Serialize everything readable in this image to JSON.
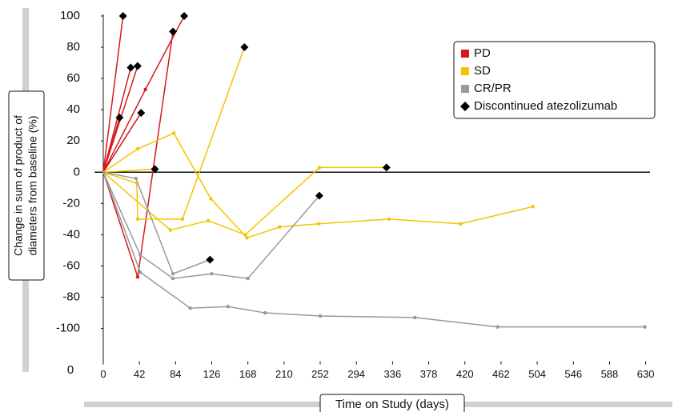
{
  "chart_data": {
    "type": "spider",
    "xlabel": "Time on Study (days)",
    "ylabel": [
      "Change in sum of product of",
      "diameters from baseline (%)"
    ],
    "corner_label": "0",
    "xlim": [
      -10,
      635
    ],
    "xticks": [
      0,
      42,
      84,
      126,
      168,
      210,
      252,
      294,
      336,
      378,
      420,
      462,
      504,
      546,
      588,
      630
    ],
    "ylim": [
      -121,
      100
    ],
    "yticks": [
      -100,
      -80,
      -60,
      -40,
      -20,
      0,
      20,
      40,
      60,
      80,
      100
    ],
    "legend_position": "upper right",
    "discontinued_label": "Discontinued atezolizumab",
    "discontinued_color": "#000000",
    "groups": [
      {
        "name": "PD",
        "color": "#d7191c",
        "lines": [
          {
            "x": [
              0,
              23
            ],
            "values": [
              0,
              100
            ],
            "discontinued": true
          },
          {
            "x": [
              0,
              32
            ],
            "values": [
              0,
              67
            ],
            "discontinued": true
          },
          {
            "x": [
              0,
              40
            ],
            "values": [
              0,
              68
            ],
            "discontinued": true
          },
          {
            "x": [
              0,
              19
            ],
            "values": [
              0,
              35
            ],
            "discontinued": true
          },
          {
            "x": [
              0,
              44
            ],
            "values": [
              0,
              38
            ],
            "discontinued": true
          },
          {
            "x": [
              0,
              49,
              94
            ],
            "values": [
              0,
              53,
              100
            ],
            "discontinued": true
          },
          {
            "x": [
              0,
              40,
              81
            ],
            "values": [
              0,
              -67,
              90
            ],
            "discontinued": true
          }
        ]
      },
      {
        "name": "SD",
        "color": "#f5c400",
        "lines": [
          {
            "x": [
              0,
              40,
              82,
              125,
              167,
              205,
              250,
              332,
              415,
              499
            ],
            "values": [
              0,
              15,
              25,
              -17,
              -42,
              -35,
              -33,
              -30,
              -33,
              -22
            ],
            "discontinued": false
          },
          {
            "x": [
              0,
              60
            ],
            "values": [
              0,
              2
            ],
            "discontinued": true
          },
          {
            "x": [
              0,
              39,
              40,
              92,
              164
            ],
            "values": [
              0,
              -7,
              -30,
              -30,
              80
            ],
            "discontinued": true
          },
          {
            "x": [
              0,
              78,
              122,
              165,
              251,
              329
            ],
            "values": [
              0,
              -37,
              -31,
              -40,
              3,
              3
            ],
            "discontinued": true
          }
        ]
      },
      {
        "name": "CR/PR",
        "color": "#999999",
        "lines": [
          {
            "x": [
              0,
              38,
              81,
              124
            ],
            "values": [
              0,
              -4,
              -65,
              -56
            ],
            "discontinued": true
          },
          {
            "x": [
              0,
              43,
              81,
              126,
              168,
              251
            ],
            "values": [
              0,
              -53,
              -68,
              -65,
              -68,
              -15
            ],
            "discontinued": true
          },
          {
            "x": [
              0,
              43,
              101,
              145,
              188,
              252,
              362,
              458,
              629
            ],
            "values": [
              0,
              -64,
              -87,
              -86,
              -90,
              -92,
              -93,
              -99,
              -99
            ],
            "discontinued": false
          }
        ]
      }
    ]
  }
}
